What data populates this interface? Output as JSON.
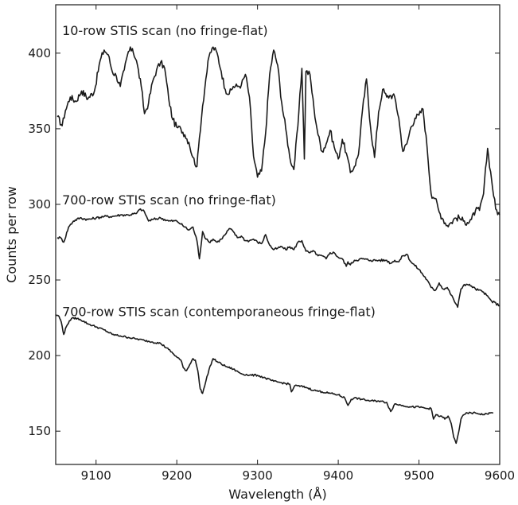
{
  "chart_data": {
    "type": "line",
    "xlabel": "Wavelength (Å)",
    "ylabel": "Counts per row",
    "xlim": [
      9050,
      9600
    ],
    "ylim": [
      128,
      432
    ],
    "xticks": [
      9100,
      9200,
      9300,
      9400,
      9500,
      9600
    ],
    "yticks": [
      150,
      200,
      250,
      300,
      350,
      400
    ],
    "grid": false,
    "legend": "none",
    "series": [
      {
        "name": "10-row STIS scan (no fringe-flat)",
        "x": [
          9052,
          9058,
          9062,
          9068,
          9075,
          9082,
          9090,
          9098,
          9105,
          9110,
          9115,
          9120,
          9125,
          9130,
          9135,
          9140,
          9145,
          9150,
          9156,
          9160,
          9165,
          9170,
          9175,
          9180,
          9185,
          9190,
          9195,
          9200,
          9205,
          9210,
          9215,
          9220,
          9225,
          9228,
          9232,
          9236,
          9240,
          9245,
          9250,
          9255,
          9260,
          9265,
          9270,
          9275,
          9280,
          9285,
          9290,
          9295,
          9300,
          9305,
          9310,
          9315,
          9320,
          9325,
          9330,
          9335,
          9340,
          9345,
          9350,
          9355,
          9358,
          9360,
          9365,
          9370,
          9375,
          9380,
          9385,
          9390,
          9395,
          9400,
          9405,
          9410,
          9415,
          9420,
          9425,
          9430,
          9435,
          9440,
          9445,
          9450,
          9455,
          9460,
          9465,
          9470,
          9475,
          9480,
          9485,
          9490,
          9495,
          9500,
          9505,
          9510,
          9515,
          9520,
          9525,
          9530,
          9535,
          9540,
          9545,
          9550,
          9555,
          9560,
          9565,
          9570,
          9575,
          9580,
          9585,
          9590,
          9595,
          9600
        ],
        "values": [
          358,
          352,
          362,
          371,
          368,
          375,
          370,
          375,
          395,
          402,
          399,
          388,
          385,
          378,
          389,
          401,
          403,
          395,
          378,
          360,
          367,
          381,
          389,
          394,
          390,
          370,
          356,
          351,
          350,
          346,
          341,
          331,
          325,
          344,
          365,
          383,
          398,
          404,
          400,
          388,
          376,
          373,
          378,
          378,
          379,
          386,
          371,
          332,
          318,
          322,
          347,
          386,
          402,
          392,
          367,
          350,
          331,
          323,
          352,
          390,
          330,
          388,
          386,
          363,
          346,
          335,
          340,
          349,
          338,
          330,
          343,
          334,
          321,
          325,
          333,
          362,
          383,
          351,
          331,
          361,
          376,
          371,
          372,
          371,
          357,
          335,
          340,
          351,
          357,
          359,
          363,
          338,
          307,
          304,
          295,
          290,
          286,
          288,
          291,
          291,
          289,
          288,
          290,
          296,
          296,
          307,
          337,
          316,
          297,
          293
        ]
      },
      {
        "name": "700-row STIS scan (no fringe-flat)",
        "x": [
          9052,
          9056,
          9060,
          9066,
          9072,
          9080,
          9090,
          9100,
          9110,
          9120,
          9130,
          9140,
          9150,
          9155,
          9160,
          9165,
          9170,
          9180,
          9190,
          9200,
          9205,
          9210,
          9215,
          9220,
          9225,
          9228,
          9232,
          9236,
          9240,
          9245,
          9250,
          9255,
          9260,
          9265,
          9270,
          9275,
          9280,
          9285,
          9290,
          9295,
          9300,
          9305,
          9310,
          9315,
          9320,
          9325,
          9330,
          9335,
          9340,
          9345,
          9350,
          9355,
          9360,
          9365,
          9370,
          9375,
          9380,
          9385,
          9390,
          9395,
          9400,
          9405,
          9410,
          9412,
          9415,
          9420,
          9430,
          9440,
          9450,
          9460,
          9465,
          9470,
          9475,
          9480,
          9485,
          9490,
          9500,
          9510,
          9515,
          9520,
          9525,
          9530,
          9535,
          9540,
          9543,
          9548,
          9552,
          9556,
          9560,
          9565,
          9570,
          9580,
          9590,
          9600
        ],
        "values": [
          278,
          278,
          275,
          285,
          289,
          291,
          290,
          291,
          292,
          292,
          293,
          293,
          294,
          297,
          295,
          289,
          290,
          291,
          289,
          289,
          287,
          285,
          283,
          285,
          276,
          264,
          282,
          277,
          275,
          277,
          275,
          277,
          280,
          284,
          282,
          278,
          279,
          276,
          276,
          277,
          275,
          274,
          280,
          273,
          270,
          271,
          272,
          270,
          272,
          270,
          275,
          276,
          269,
          268,
          269,
          266,
          266,
          264,
          268,
          268,
          265,
          264,
          259,
          262,
          260,
          263,
          264,
          263,
          263,
          263,
          261,
          263,
          262,
          266,
          267,
          262,
          257,
          250,
          245,
          243,
          248,
          244,
          245,
          240,
          237,
          232,
          244,
          247,
          247,
          246,
          244,
          242,
          236,
          233
        ]
      },
      {
        "name": "700-row STIS scan (contemporaneous fringe-flat)",
        "x": [
          9050,
          9054,
          9057,
          9060,
          9063,
          9067,
          9072,
          9080,
          9090,
          9100,
          9110,
          9120,
          9130,
          9140,
          9150,
          9160,
          9170,
          9180,
          9190,
          9200,
          9205,
          9208,
          9212,
          9216,
          9220,
          9223,
          9226,
          9229,
          9232,
          9236,
          9240,
          9245,
          9250,
          9260,
          9270,
          9280,
          9290,
          9300,
          9310,
          9320,
          9330,
          9340,
          9342,
          9346,
          9350,
          9360,
          9370,
          9380,
          9390,
          9400,
          9408,
          9412,
          9416,
          9420,
          9430,
          9440,
          9450,
          9460,
          9465,
          9470,
          9480,
          9490,
          9500,
          9510,
          9515,
          9518,
          9521,
          9524,
          9528,
          9532,
          9536,
          9540,
          9543,
          9546,
          9549,
          9552,
          9556,
          9560,
          9570,
          9580,
          9588,
          9592
        ],
        "values": [
          227,
          226,
          222,
          214,
          219,
          223,
          225,
          224,
          221,
          219,
          217,
          214,
          213,
          212,
          211,
          210,
          209,
          208,
          204,
          199,
          197,
          192,
          190,
          194,
          198,
          197,
          190,
          178,
          175,
          183,
          191,
          198,
          196,
          193,
          191,
          188,
          187,
          187,
          185,
          183,
          182,
          181,
          176,
          180,
          180,
          179,
          177,
          176,
          175,
          174,
          172,
          167,
          171,
          172,
          171,
          170,
          170,
          169,
          163,
          168,
          167,
          166,
          166,
          165,
          165,
          158,
          161,
          160,
          160,
          158,
          160,
          155,
          146,
          142,
          149,
          158,
          161,
          162,
          162,
          161,
          162,
          162
        ]
      }
    ],
    "annotations": [
      {
        "text": "10-row STIS scan (no fringe-flat)",
        "x": 9055,
        "y": 412
      },
      {
        "text": "700-row STIS scan (no fringe-flat)",
        "x": 9055,
        "y": 300
      },
      {
        "text": "700-row STIS scan (contemporaneous fringe-flat)",
        "x": 9055,
        "y": 226
      }
    ]
  }
}
